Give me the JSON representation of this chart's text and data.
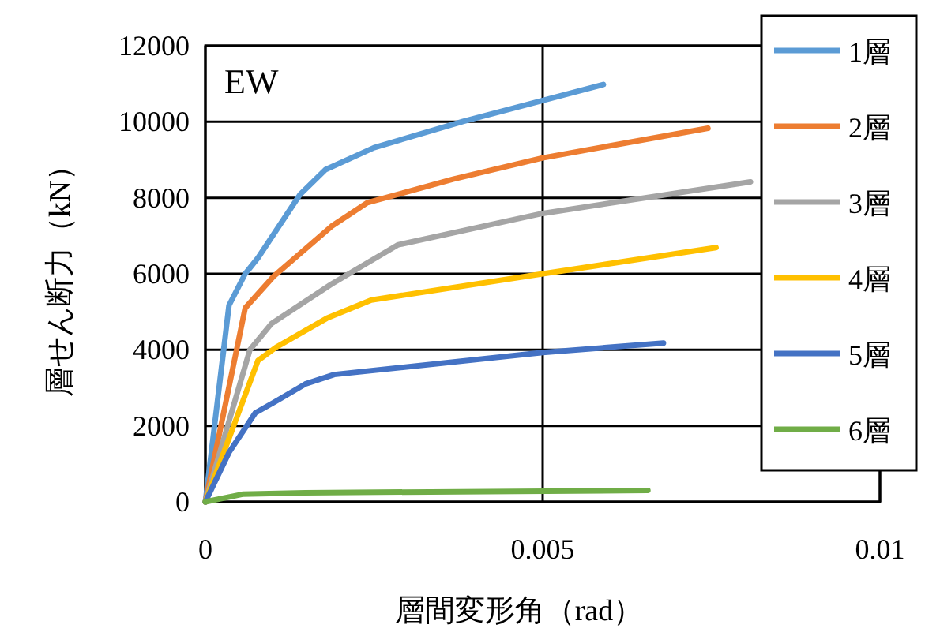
{
  "chart_data": {
    "type": "line",
    "xlabel": "層間変形角（rad）",
    "ylabel": "層せん断力（kN）",
    "annotations": [
      "EW"
    ],
    "xlim": [
      0,
      0.01
    ],
    "ylim": [
      0,
      12000
    ],
    "xticks": [
      0,
      0.005,
      0.01
    ],
    "yticks": [
      0,
      2000,
      4000,
      6000,
      8000,
      10000,
      12000
    ],
    "grid": true,
    "legend": "right",
    "marker": "none",
    "line_style": "solid",
    "series": [
      {
        "name": "1層",
        "color": "#5b9bd5",
        "x": [
          0,
          0.00035,
          0.00059,
          0.00078,
          0.0014,
          0.00178,
          0.0025,
          0.00382,
          0.0059
        ],
        "values": [
          0,
          5170,
          6000,
          6420,
          8080,
          8740,
          9320,
          10010,
          10980
        ]
      },
      {
        "name": "2層",
        "color": "#ed7d31",
        "x": [
          0,
          0.00059,
          0.00101,
          0.00187,
          0.0024,
          0.00367,
          0.005,
          0.00745
        ],
        "values": [
          0,
          5100,
          5930,
          7250,
          7870,
          8490,
          9050,
          9830
        ]
      },
      {
        "name": "3層",
        "color": "#a5a5a5",
        "x": [
          0,
          0.00066,
          0.00098,
          0.00187,
          0.00285,
          0.005,
          0.00808
        ],
        "values": [
          0,
          4000,
          4690,
          5730,
          6760,
          7590,
          8420
        ]
      },
      {
        "name": "4層",
        "color": "#ffc000",
        "x": [
          0,
          0.00078,
          0.00105,
          0.0018,
          0.00246,
          0.005,
          0.00757
        ],
        "values": [
          0,
          3720,
          4070,
          4830,
          5310,
          6000,
          6690
        ]
      },
      {
        "name": "5層",
        "color": "#4472c4",
        "x": [
          0,
          0.00035,
          0.00074,
          0.00101,
          0.00148,
          0.00191,
          0.005,
          0.00679
        ],
        "values": [
          0,
          1300,
          2340,
          2610,
          3100,
          3350,
          3930,
          4180
        ]
      },
      {
        "name": "6層",
        "color": "#70ad47",
        "x": [
          0,
          0.00055,
          0.00148,
          0.00656
        ],
        "values": [
          0,
          200,
          240,
          300
        ]
      }
    ]
  }
}
